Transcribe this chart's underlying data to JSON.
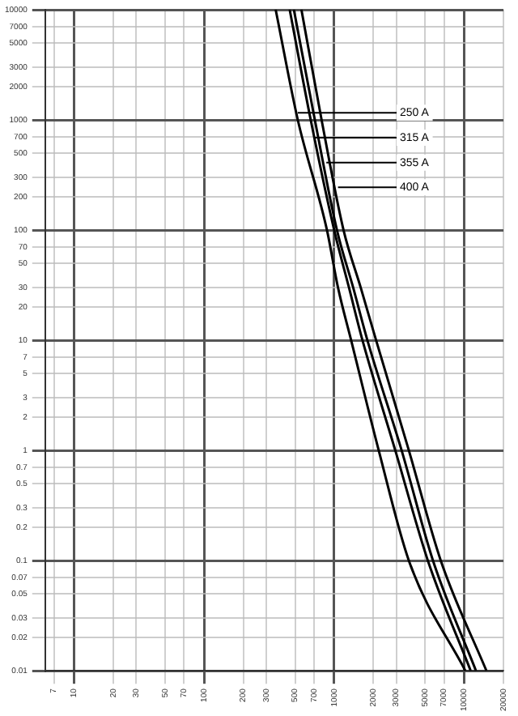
{
  "chart_data": {
    "type": "line",
    "log": "xy",
    "grid": true,
    "legend": false,
    "marker": "none",
    "line_style": "solid",
    "xlim": [
      6,
      20000
    ],
    "ylim": [
      0.01,
      10000
    ],
    "xticks": [
      7,
      10,
      20,
      30,
      50,
      70,
      100,
      200,
      300,
      500,
      700,
      1000,
      2000,
      3000,
      5000,
      7000,
      10000,
      20000
    ],
    "yticks": [
      0.01,
      0.02,
      0.03,
      0.05,
      0.07,
      0.1,
      0.2,
      0.3,
      0.5,
      0.7,
      1,
      2,
      3,
      5,
      7,
      10,
      20,
      30,
      50,
      70,
      100,
      200,
      300,
      500,
      700,
      1000,
      2000,
      3000,
      5000,
      7000,
      10000
    ],
    "series": [
      {
        "color": "#000000",
        "x": [
          355,
          525,
          880,
          1070,
          1350,
          2200,
          3750,
          10200
        ],
        "values": [
          10000,
          1000,
          100,
          30,
          10,
          1,
          0.1,
          0.01
        ]
      },
      {
        "color": "#000000",
        "x": [
          455,
          660,
          1000,
          1300,
          1650,
          2950,
          5250,
          11200
        ],
        "values": [
          10000,
          1000,
          100,
          30,
          10,
          1,
          0.1,
          0.01
        ]
      },
      {
        "color": "#000000",
        "x": [
          490,
          710,
          1050,
          1400,
          1800,
          3300,
          5750,
          12300
        ],
        "values": [
          10000,
          1000,
          100,
          30,
          10,
          1,
          0.1,
          0.01
        ]
      },
      {
        "color": "#000000",
        "x": [
          560,
          800,
          1180,
          1600,
          2100,
          3750,
          6600,
          14800
        ],
        "values": [
          10000,
          1000,
          100,
          30,
          10,
          1,
          0.1,
          0.01
        ]
      }
    ],
    "annotations": [
      {
        "text": "250 A",
        "x": 525,
        "y": 1160
      },
      {
        "text": "315 A",
        "x": 710,
        "y": 690
      },
      {
        "text": "355 A",
        "x": 870,
        "y": 410
      },
      {
        "text": "400 A",
        "x": 1070,
        "y": 245
      }
    ]
  }
}
